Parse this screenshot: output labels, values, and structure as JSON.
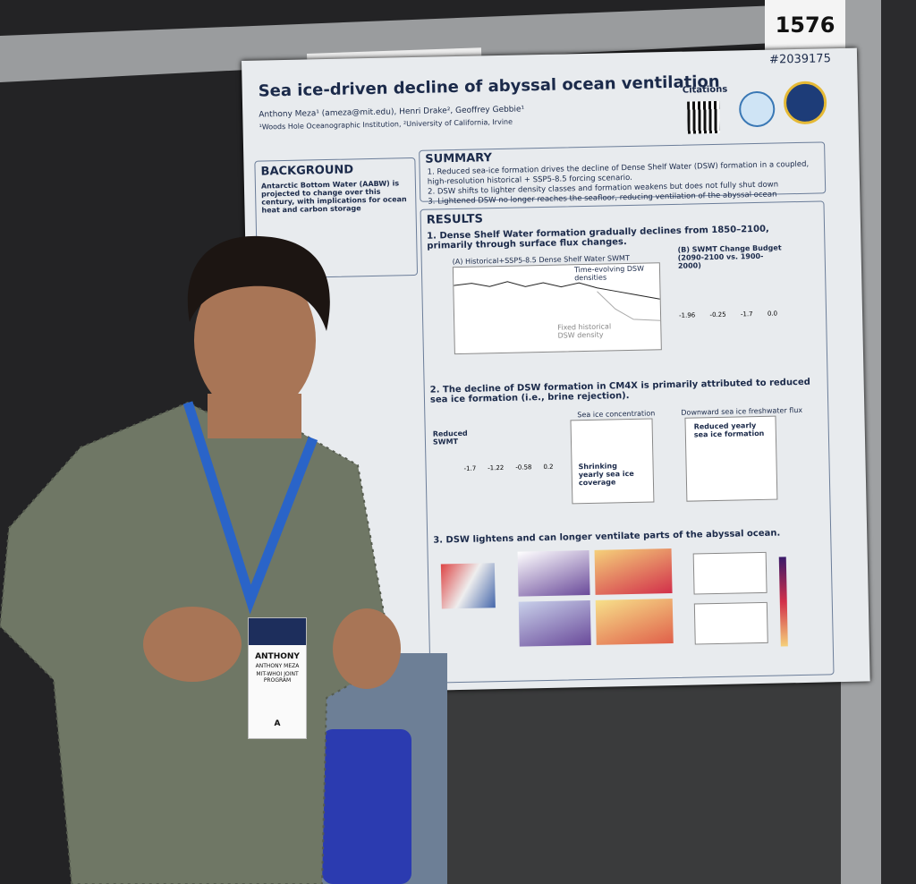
{
  "board_number": "1576",
  "poster": {
    "id": "#2039175",
    "title": "Sea ice-driven decline of abyssal ocean ventilation",
    "authors": "Anthony Meza¹ (ameza@mit.edu), Henri Drake², Geoffrey Gebbie¹",
    "affiliations": "¹Woods Hole Oceanographic Institution, ²University of California, Irvine",
    "citations": "Citations",
    "background": {
      "heading": "BACKGROUND",
      "text": "Antarctic Bottom Water (AABW) is projected to change over this century, with implications for ocean heat and carbon storage"
    },
    "summary": {
      "heading": "SUMMARY",
      "items": [
        "1. Reduced sea-ice formation drives the decline of Dense Shelf Water (DSW) formation in a coupled, high-resolution historical + SSP5-8.5 forcing scenario.",
        "2. DSW shifts to lighter density classes and formation weakens but does not fully shut down",
        "3. Lightened DSW no longer reaches the seafloor, reducing ventilation of the abyssal ocean"
      ]
    },
    "results": {
      "heading": "RESULTS",
      "findings": [
        {
          "text": "1. Dense Shelf Water formation gradually declines from 1850–2100, primarily through surface flux changes.",
          "panel_a": "(A) Historical+SSP5-8.5 Dense Shelf Water SWMT",
          "note_a": "Time-evolving DSW densities",
          "note_b": "Fixed historical DSW density",
          "panel_b": "(B) SWMT Change Budget (2090-2100 vs. 1900-2000)",
          "budget_values": [
            "-1.96",
            "-0.25",
            "-1.7",
            "0.0"
          ]
        },
        {
          "text": "2. The decline of DSW formation in CM4X is primarily attributed to reduced sea ice formation (i.e., brine rejection).",
          "arrow_label": "Reduced SWMT",
          "bar_values": [
            "-1.7",
            "-1.22",
            "-0.58",
            "0.2"
          ],
          "panel_c": "Sea ice concentration",
          "note_c": "Shrinking yearly sea ice coverage",
          "panel_d": "Downward sea ice freshwater flux",
          "note_d": "Reduced yearly sea ice formation"
        },
        {
          "text": "3. DSW lightens and can longer ventilate parts of the abyssal ocean."
        }
      ]
    }
  },
  "badge": {
    "first_name": "ANTHONY",
    "full_name": "ANTHONY MEZA",
    "program": "MIT-WHOI JOINT PROGRAM",
    "category": "A"
  }
}
